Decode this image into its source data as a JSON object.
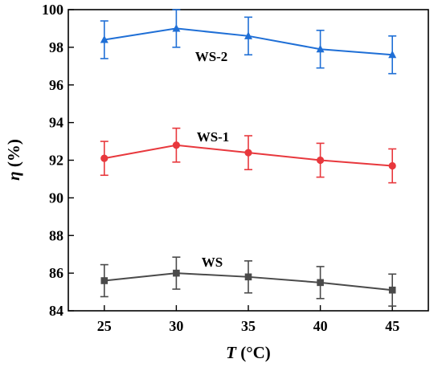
{
  "chart_data": {
    "type": "line",
    "xlabel": "T (°C)",
    "xlabel_italic": "T",
    "xlabel_unit": " (°C)",
    "ylabel": "η (%)",
    "ylabel_italic": "η",
    "ylabel_unit": " (%)",
    "xlim": [
      22.5,
      47.5
    ],
    "ylim": [
      84,
      100
    ],
    "x_ticks": [
      25,
      30,
      35,
      40,
      45
    ],
    "y_ticks": [
      84,
      86,
      88,
      90,
      92,
      94,
      96,
      98,
      100
    ],
    "grid": false,
    "x": [
      25,
      30,
      35,
      40,
      45
    ],
    "series": [
      {
        "name": "WS-2",
        "color": "#1f6fd6",
        "marker": "triangle",
        "values": [
          98.4,
          99.0,
          98.6,
          97.9,
          97.6
        ],
        "error": [
          1.0,
          1.0,
          1.0,
          1.0,
          1.0
        ]
      },
      {
        "name": "WS-1",
        "color": "#e8383d",
        "marker": "circle",
        "values": [
          92.1,
          92.8,
          92.4,
          92.0,
          91.7
        ],
        "error": [
          0.9,
          0.9,
          0.9,
          0.9,
          0.9
        ]
      },
      {
        "name": "WS",
        "color": "#4a4a4a",
        "marker": "square",
        "values": [
          85.6,
          86.0,
          85.8,
          85.5,
          85.1
        ],
        "error": [
          0.85,
          0.85,
          0.85,
          0.85,
          0.85
        ]
      }
    ]
  }
}
